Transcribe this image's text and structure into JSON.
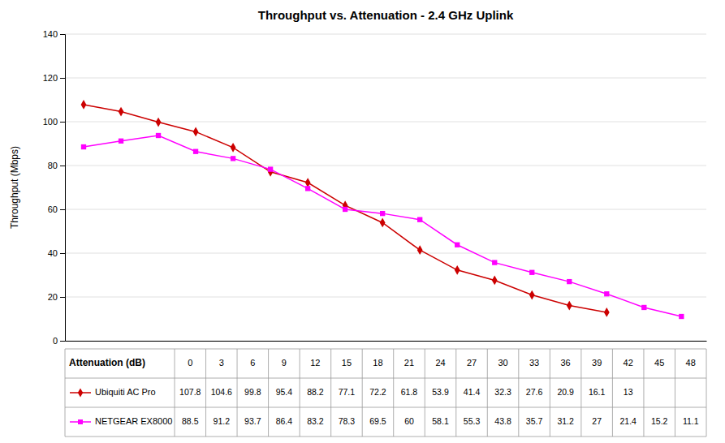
{
  "chart_data": {
    "type": "line",
    "title": "Throughput vs. Attenuation - 2.4 GHz Uplink",
    "xlabel": "Attenuation (dB)",
    "ylabel": "Throughput (Mbps)",
    "x": [
      0,
      3,
      6,
      9,
      12,
      15,
      18,
      21,
      24,
      27,
      30,
      33,
      36,
      39,
      42,
      45,
      48
    ],
    "series": [
      {
        "name": "Ubiquiti AC Pro",
        "color": "#CC0000",
        "marker": "diamond",
        "values": [
          107.8,
          104.6,
          99.8,
          95.4,
          88.2,
          77.1,
          72.2,
          61.8,
          53.9,
          41.4,
          32.3,
          27.6,
          20.9,
          16.1,
          13,
          null,
          null
        ]
      },
      {
        "name": "NETGEAR EX8000",
        "color": "#FF00FF",
        "marker": "square",
        "values": [
          88.5,
          91.2,
          93.7,
          86.4,
          83.2,
          78.3,
          69.5,
          60,
          58.1,
          55.3,
          43.8,
          35.7,
          31.2,
          27,
          21.4,
          15.2,
          11.1
        ]
      }
    ],
    "xlim": [
      -1.5,
      50
    ],
    "xticks": [
      0,
      3,
      6,
      9,
      12,
      15,
      18,
      21,
      24,
      27,
      30,
      33,
      36,
      39,
      42,
      45,
      48
    ],
    "ylim": [
      0,
      140
    ],
    "yticks": [
      0,
      20,
      40,
      60,
      80,
      100,
      120,
      140
    ],
    "grid": true,
    "legend": "bottom",
    "data_labels": true
  }
}
